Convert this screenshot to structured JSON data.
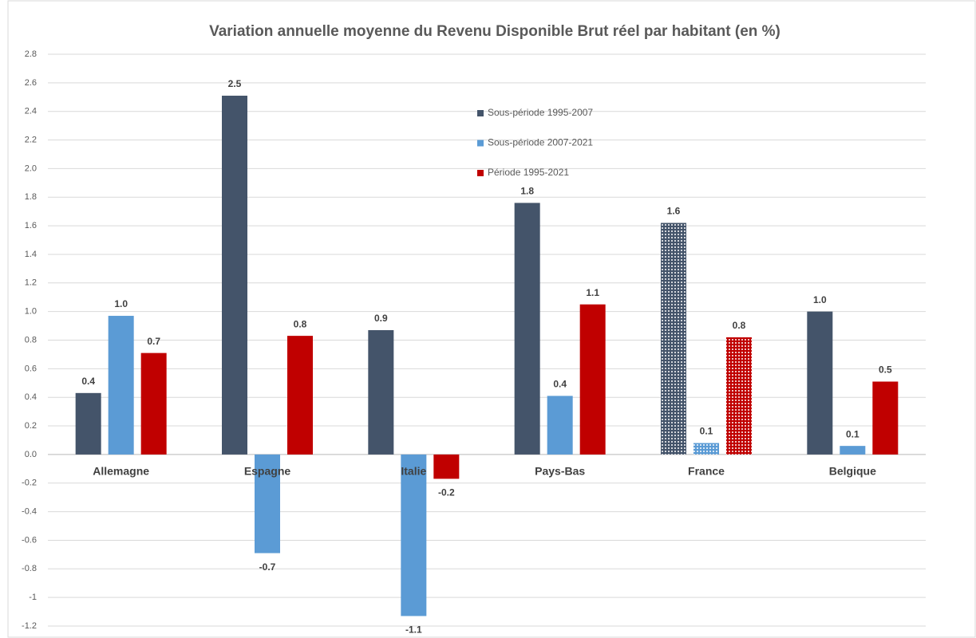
{
  "chart_data": {
    "type": "bar",
    "title": "Variation annuelle moyenne du Revenu Disponible Brut réel par habitant (en %)",
    "categories": [
      "Allemagne",
      "Espagne",
      "Italie",
      "Pays-Bas",
      "France",
      "Belgique"
    ],
    "series": [
      {
        "name": "Sous-période 1995-2007",
        "color": "#44546a",
        "values": [
          0.43,
          2.51,
          0.87,
          1.76,
          1.62,
          1.0
        ],
        "value_labels": [
          "0.4",
          "2.5",
          "0.9",
          "1.8",
          "1.6",
          "1.0"
        ]
      },
      {
        "name": "Sous-période 2007-2021",
        "color": "#5b9bd5",
        "values": [
          0.97,
          -0.69,
          -1.13,
          0.41,
          0.08,
          0.06
        ],
        "value_labels": [
          "1.0",
          "-0.7",
          "-1.1",
          "0.4",
          "0.1",
          "0.1"
        ]
      },
      {
        "name": "Période 1995-2021",
        "color": "#c00000",
        "values": [
          0.71,
          0.83,
          -0.17,
          1.05,
          0.82,
          0.51
        ],
        "value_labels": [
          "0.7",
          "0.8",
          "-0.2",
          "1.1",
          "0.8",
          "0.5"
        ]
      }
    ],
    "patterned": [
      false,
      false,
      false,
      false,
      true,
      false
    ],
    "ylim": [
      -1.2,
      2.8
    ],
    "yticks": [
      -1.2,
      -1.0,
      -0.8,
      -0.6,
      -0.4,
      -0.2,
      {
        "value": 0,
        "label": "0.0"
      },
      0.2,
      0.4,
      0.6,
      0.8,
      {
        "value": 1,
        "label": "1.0"
      },
      1.2,
      1.4,
      1.6,
      1.8,
      {
        "value": 2,
        "label": "2.0"
      },
      2.2,
      2.4,
      2.6,
      2.8
    ],
    "grid": true
  }
}
